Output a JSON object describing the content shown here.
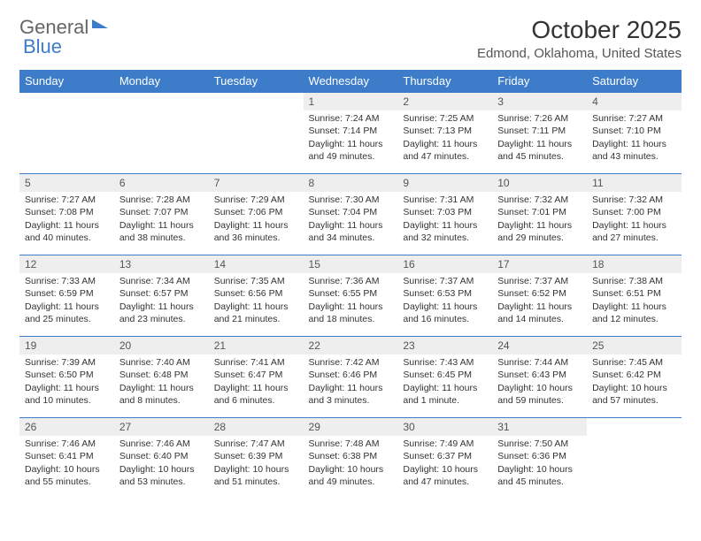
{
  "logo": {
    "part1": "General",
    "part2": "Blue"
  },
  "header": {
    "month_title": "October 2025",
    "location": "Edmond, Oklahoma, United States"
  },
  "colors": {
    "header_bg": "#3d7cc9",
    "header_text": "#ffffff",
    "daynum_bg": "#eeeeee",
    "border": "#3d7cc9"
  },
  "weekdays": [
    "Sunday",
    "Monday",
    "Tuesday",
    "Wednesday",
    "Thursday",
    "Friday",
    "Saturday"
  ],
  "weeks": [
    [
      {
        "day": "",
        "sunrise": "",
        "sunset": "",
        "daylight": ""
      },
      {
        "day": "",
        "sunrise": "",
        "sunset": "",
        "daylight": ""
      },
      {
        "day": "",
        "sunrise": "",
        "sunset": "",
        "daylight": ""
      },
      {
        "day": "1",
        "sunrise": "Sunrise: 7:24 AM",
        "sunset": "Sunset: 7:14 PM",
        "daylight": "Daylight: 11 hours and 49 minutes."
      },
      {
        "day": "2",
        "sunrise": "Sunrise: 7:25 AM",
        "sunset": "Sunset: 7:13 PM",
        "daylight": "Daylight: 11 hours and 47 minutes."
      },
      {
        "day": "3",
        "sunrise": "Sunrise: 7:26 AM",
        "sunset": "Sunset: 7:11 PM",
        "daylight": "Daylight: 11 hours and 45 minutes."
      },
      {
        "day": "4",
        "sunrise": "Sunrise: 7:27 AM",
        "sunset": "Sunset: 7:10 PM",
        "daylight": "Daylight: 11 hours and 43 minutes."
      }
    ],
    [
      {
        "day": "5",
        "sunrise": "Sunrise: 7:27 AM",
        "sunset": "Sunset: 7:08 PM",
        "daylight": "Daylight: 11 hours and 40 minutes."
      },
      {
        "day": "6",
        "sunrise": "Sunrise: 7:28 AM",
        "sunset": "Sunset: 7:07 PM",
        "daylight": "Daylight: 11 hours and 38 minutes."
      },
      {
        "day": "7",
        "sunrise": "Sunrise: 7:29 AM",
        "sunset": "Sunset: 7:06 PM",
        "daylight": "Daylight: 11 hours and 36 minutes."
      },
      {
        "day": "8",
        "sunrise": "Sunrise: 7:30 AM",
        "sunset": "Sunset: 7:04 PM",
        "daylight": "Daylight: 11 hours and 34 minutes."
      },
      {
        "day": "9",
        "sunrise": "Sunrise: 7:31 AM",
        "sunset": "Sunset: 7:03 PM",
        "daylight": "Daylight: 11 hours and 32 minutes."
      },
      {
        "day": "10",
        "sunrise": "Sunrise: 7:32 AM",
        "sunset": "Sunset: 7:01 PM",
        "daylight": "Daylight: 11 hours and 29 minutes."
      },
      {
        "day": "11",
        "sunrise": "Sunrise: 7:32 AM",
        "sunset": "Sunset: 7:00 PM",
        "daylight": "Daylight: 11 hours and 27 minutes."
      }
    ],
    [
      {
        "day": "12",
        "sunrise": "Sunrise: 7:33 AM",
        "sunset": "Sunset: 6:59 PM",
        "daylight": "Daylight: 11 hours and 25 minutes."
      },
      {
        "day": "13",
        "sunrise": "Sunrise: 7:34 AM",
        "sunset": "Sunset: 6:57 PM",
        "daylight": "Daylight: 11 hours and 23 minutes."
      },
      {
        "day": "14",
        "sunrise": "Sunrise: 7:35 AM",
        "sunset": "Sunset: 6:56 PM",
        "daylight": "Daylight: 11 hours and 21 minutes."
      },
      {
        "day": "15",
        "sunrise": "Sunrise: 7:36 AM",
        "sunset": "Sunset: 6:55 PM",
        "daylight": "Daylight: 11 hours and 18 minutes."
      },
      {
        "day": "16",
        "sunrise": "Sunrise: 7:37 AM",
        "sunset": "Sunset: 6:53 PM",
        "daylight": "Daylight: 11 hours and 16 minutes."
      },
      {
        "day": "17",
        "sunrise": "Sunrise: 7:37 AM",
        "sunset": "Sunset: 6:52 PM",
        "daylight": "Daylight: 11 hours and 14 minutes."
      },
      {
        "day": "18",
        "sunrise": "Sunrise: 7:38 AM",
        "sunset": "Sunset: 6:51 PM",
        "daylight": "Daylight: 11 hours and 12 minutes."
      }
    ],
    [
      {
        "day": "19",
        "sunrise": "Sunrise: 7:39 AM",
        "sunset": "Sunset: 6:50 PM",
        "daylight": "Daylight: 11 hours and 10 minutes."
      },
      {
        "day": "20",
        "sunrise": "Sunrise: 7:40 AM",
        "sunset": "Sunset: 6:48 PM",
        "daylight": "Daylight: 11 hours and 8 minutes."
      },
      {
        "day": "21",
        "sunrise": "Sunrise: 7:41 AM",
        "sunset": "Sunset: 6:47 PM",
        "daylight": "Daylight: 11 hours and 6 minutes."
      },
      {
        "day": "22",
        "sunrise": "Sunrise: 7:42 AM",
        "sunset": "Sunset: 6:46 PM",
        "daylight": "Daylight: 11 hours and 3 minutes."
      },
      {
        "day": "23",
        "sunrise": "Sunrise: 7:43 AM",
        "sunset": "Sunset: 6:45 PM",
        "daylight": "Daylight: 11 hours and 1 minute."
      },
      {
        "day": "24",
        "sunrise": "Sunrise: 7:44 AM",
        "sunset": "Sunset: 6:43 PM",
        "daylight": "Daylight: 10 hours and 59 minutes."
      },
      {
        "day": "25",
        "sunrise": "Sunrise: 7:45 AM",
        "sunset": "Sunset: 6:42 PM",
        "daylight": "Daylight: 10 hours and 57 minutes."
      }
    ],
    [
      {
        "day": "26",
        "sunrise": "Sunrise: 7:46 AM",
        "sunset": "Sunset: 6:41 PM",
        "daylight": "Daylight: 10 hours and 55 minutes."
      },
      {
        "day": "27",
        "sunrise": "Sunrise: 7:46 AM",
        "sunset": "Sunset: 6:40 PM",
        "daylight": "Daylight: 10 hours and 53 minutes."
      },
      {
        "day": "28",
        "sunrise": "Sunrise: 7:47 AM",
        "sunset": "Sunset: 6:39 PM",
        "daylight": "Daylight: 10 hours and 51 minutes."
      },
      {
        "day": "29",
        "sunrise": "Sunrise: 7:48 AM",
        "sunset": "Sunset: 6:38 PM",
        "daylight": "Daylight: 10 hours and 49 minutes."
      },
      {
        "day": "30",
        "sunrise": "Sunrise: 7:49 AM",
        "sunset": "Sunset: 6:37 PM",
        "daylight": "Daylight: 10 hours and 47 minutes."
      },
      {
        "day": "31",
        "sunrise": "Sunrise: 7:50 AM",
        "sunset": "Sunset: 6:36 PM",
        "daylight": "Daylight: 10 hours and 45 minutes."
      },
      {
        "day": "",
        "sunrise": "",
        "sunset": "",
        "daylight": ""
      }
    ]
  ]
}
